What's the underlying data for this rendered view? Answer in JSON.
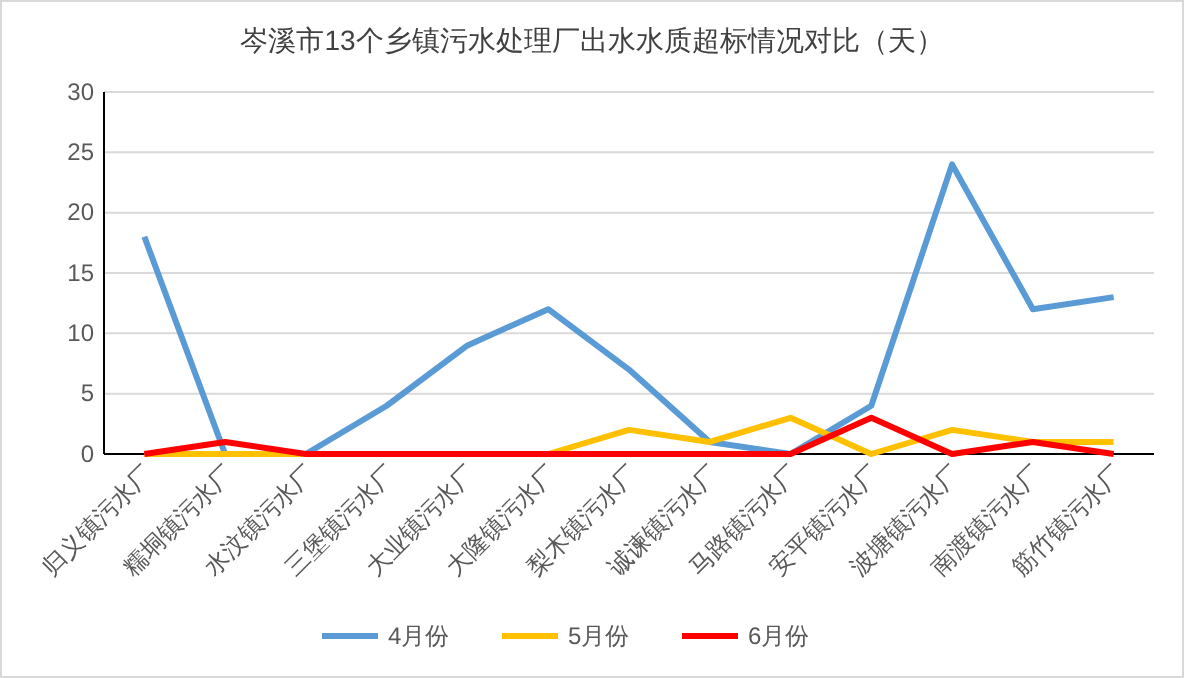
{
  "chart_data": {
    "type": "line",
    "title": "岑溪市13个乡镇污水处理厂出水水质超标情况对比（天）",
    "categories": [
      "归义镇污水厂",
      "糯垌镇污水厂",
      "水汶镇污水厂",
      "三堡镇污水厂",
      "大业镇污水厂",
      "大隆镇污水厂",
      "梨木镇污水厂",
      "诚谏镇污水厂",
      "马路镇污水厂",
      "安平镇污水厂",
      "波塘镇污水厂",
      "南渡镇污水厂",
      "筋竹镇污水厂"
    ],
    "series": [
      {
        "name": "4月份",
        "color": "#5b9bd5",
        "values": [
          18,
          0,
          0,
          4,
          9,
          12,
          7,
          1,
          0,
          4,
          24,
          12,
          13
        ]
      },
      {
        "name": "5月份",
        "color": "#ffc000",
        "values": [
          0,
          0,
          0,
          0,
          0,
          0,
          2,
          1,
          3,
          0,
          2,
          1,
          1
        ]
      },
      {
        "name": "6月份",
        "color": "#ff0000",
        "values": [
          0,
          1,
          0,
          0,
          0,
          0,
          0,
          0,
          0,
          3,
          0,
          1,
          0
        ]
      }
    ],
    "ylim": [
      0,
      30
    ],
    "yticks": [
      0,
      5,
      10,
      15,
      20,
      25,
      30
    ],
    "grid": "y",
    "legend": "bottom",
    "marker": "none",
    "line_style": "solid"
  }
}
